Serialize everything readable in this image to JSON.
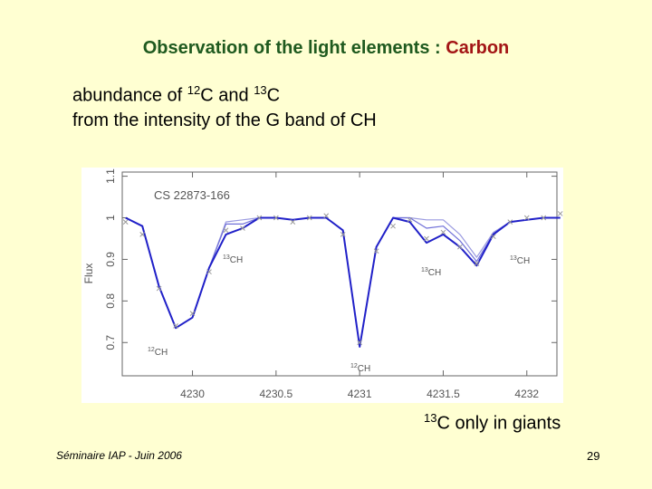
{
  "slide": {
    "title": "Observation of the light elements : ",
    "title_highlight": "Carbon",
    "line1": [
      "abundance of ",
      "12",
      "C and ",
      "13",
      "C"
    ],
    "line2": "from the  intensity of the G band of CH",
    "note": [
      "13",
      "C only in giants"
    ],
    "footer": "Séminaire IAP -   Juin 2006",
    "page": "29"
  },
  "chart_data": {
    "type": "line",
    "ylabel": "Flux",
    "annotations": [
      "CS 22873-166",
      {
        "sup": "13",
        "text": "CH"
      },
      {
        "sup": "13",
        "text": "CH"
      },
      {
        "sup": "13",
        "text": "CH"
      },
      {
        "sup": "12",
        "text": "CH"
      },
      {
        "sup": "12",
        "text": "CH"
      }
    ],
    "x": [
      4229.6,
      4229.7,
      4229.8,
      4229.9,
      4230.0,
      4230.1,
      4230.2,
      4230.3,
      4230.4,
      4230.5,
      4230.6,
      4230.7,
      4230.8,
      4230.9,
      4231.0,
      4231.1,
      4231.2,
      4231.3,
      4231.4,
      4231.5,
      4231.6,
      4231.7,
      4231.8,
      4231.9,
      4232.0,
      4232.1,
      4232.2
    ],
    "series": [
      {
        "color": "#9a9ae0",
        "values": [
          1.0,
          0.98,
          0.835,
          0.735,
          0.76,
          0.88,
          0.99,
          0.995,
          1.0,
          1.0,
          0.995,
          1.0,
          1.0,
          0.97,
          0.69,
          0.93,
          1.0,
          1.0,
          0.995,
          0.995,
          0.96,
          0.905,
          0.965,
          0.99,
          0.995,
          1.0,
          1.0
        ]
      },
      {
        "color": "#7070d8",
        "values": [
          1.0,
          0.98,
          0.835,
          0.735,
          0.76,
          0.88,
          0.985,
          0.985,
          1.0,
          1.0,
          0.995,
          1.0,
          1.0,
          0.97,
          0.69,
          0.93,
          1.0,
          1.0,
          0.975,
          0.98,
          0.945,
          0.895,
          0.962,
          0.99,
          0.995,
          1.0,
          1.0
        ]
      },
      {
        "color": "#2020c8",
        "values": [
          1.0,
          0.98,
          0.835,
          0.735,
          0.76,
          0.88,
          0.96,
          0.975,
          1.0,
          1.0,
          0.995,
          1.0,
          1.0,
          0.97,
          0.69,
          0.93,
          1.0,
          0.99,
          0.94,
          0.96,
          0.93,
          0.885,
          0.96,
          0.99,
          0.995,
          1.0,
          1.0
        ]
      },
      {
        "color": "#999999",
        "marker": "x",
        "values": [
          0.99,
          0.96,
          0.83,
          0.74,
          0.77,
          0.87,
          0.97,
          0.975,
          1.0,
          1.0,
          0.99,
          1.0,
          1.005,
          0.96,
          0.7,
          0.92,
          0.98,
          0.995,
          0.95,
          0.965,
          0.93,
          0.89,
          0.955,
          0.99,
          1.0,
          1.0,
          1.01
        ]
      }
    ],
    "xlim": [
      4229.58,
      4232.18
    ],
    "ylim": [
      0.62,
      1.11
    ],
    "xticks": [
      4230,
      4230.5,
      4231,
      4231.5,
      4232
    ],
    "yticks": [
      0.7,
      0.8,
      0.9,
      1,
      1.1
    ]
  }
}
